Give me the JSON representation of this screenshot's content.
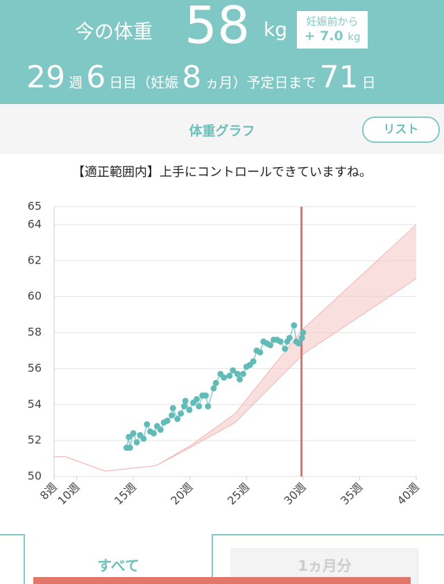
{
  "header": {
    "label": "今の体重",
    "weight": 58,
    "unit": "kg",
    "badge": {
      "title": "妊娠前から",
      "gain": "+ 7.0",
      "unit": "kg"
    },
    "pregnancy": {
      "week": 29,
      "week_unit": "週",
      "day": 6,
      "day_unit": "日目（妊娠",
      "month": 8,
      "month_unit": "ヵ月）予定日まで",
      "days_left": 71,
      "days_left_unit": "日"
    }
  },
  "tab_title": "体重グラフ",
  "list_button": "リスト",
  "message": "【適正範囲内】上手にコントロールできていますね。",
  "chart_data": {
    "type": "scatter",
    "ylim": [
      50,
      65
    ],
    "yticks": [
      50,
      52,
      54,
      56,
      58,
      60,
      62,
      64,
      65
    ],
    "xlim": [
      8,
      40
    ],
    "xticks": [
      {
        "value": 8,
        "label": "8週"
      },
      {
        "value": 10,
        "label": "10週"
      },
      {
        "value": 15,
        "label": "15週"
      },
      {
        "value": 20,
        "label": "20週"
      },
      {
        "value": 25,
        "label": "25週"
      },
      {
        "value": 30,
        "label": "30週"
      },
      {
        "value": 35,
        "label": "35週"
      },
      {
        "value": 40,
        "label": "40週"
      }
    ],
    "grid": true,
    "current_week": 29.86,
    "current_color": "#d9706c",
    "range": {
      "color": "#f7c9c9",
      "x": [
        8,
        9,
        12.5,
        17,
        20,
        24,
        30,
        40
      ],
      "lower": [
        51.1,
        51.1,
        50.3,
        50.6,
        51.6,
        53.0,
        56.8,
        61.0
      ],
      "upper": [
        51.1,
        51.1,
        50.3,
        50.6,
        51.7,
        53.5,
        58.2,
        64.0
      ]
    },
    "series": [
      {
        "color": "#62bbb7",
        "x": [
          14.4,
          14.6,
          14.7,
          15.0,
          15.3,
          15.6,
          15.9,
          16.2,
          16.5,
          16.8,
          17.1,
          17.4,
          17.7,
          18.0,
          18.4,
          18.5,
          18.9,
          19.2,
          19.5,
          19.6,
          19.95,
          20.3,
          20.6,
          20.8,
          21.1,
          21.4,
          21.6,
          22.1,
          22.3,
          22.7,
          23.0,
          23.5,
          23.8,
          24.2,
          24.4,
          24.7,
          25.0,
          25.3,
          25.6,
          25.9,
          26.2,
          26.5,
          26.8,
          27.1,
          27.4,
          27.7,
          28.0,
          28.4,
          28.6,
          28.8,
          29.2,
          29.4,
          29.6,
          29.9,
          30.0
        ],
        "values": [
          51.6,
          52.2,
          51.6,
          52.4,
          51.9,
          52.3,
          52.1,
          52.9,
          52.5,
          52.4,
          52.8,
          52.6,
          53.0,
          53.1,
          53.4,
          53.8,
          53.2,
          53.5,
          53.9,
          54.2,
          53.7,
          54.1,
          54.3,
          53.9,
          54.5,
          54.5,
          53.9,
          54.9,
          55.2,
          55.7,
          55.5,
          55.6,
          55.9,
          55.7,
          55.4,
          55.7,
          56.1,
          56.2,
          56.4,
          57.0,
          56.9,
          57.5,
          57.4,
          57.3,
          57.6,
          57.6,
          57.5,
          57.1,
          57.5,
          57.7,
          58.4,
          57.5,
          57.4,
          57.7,
          58.0
        ]
      }
    ]
  },
  "bottom_tabs": [
    "すべて",
    "1ヵ月分"
  ]
}
